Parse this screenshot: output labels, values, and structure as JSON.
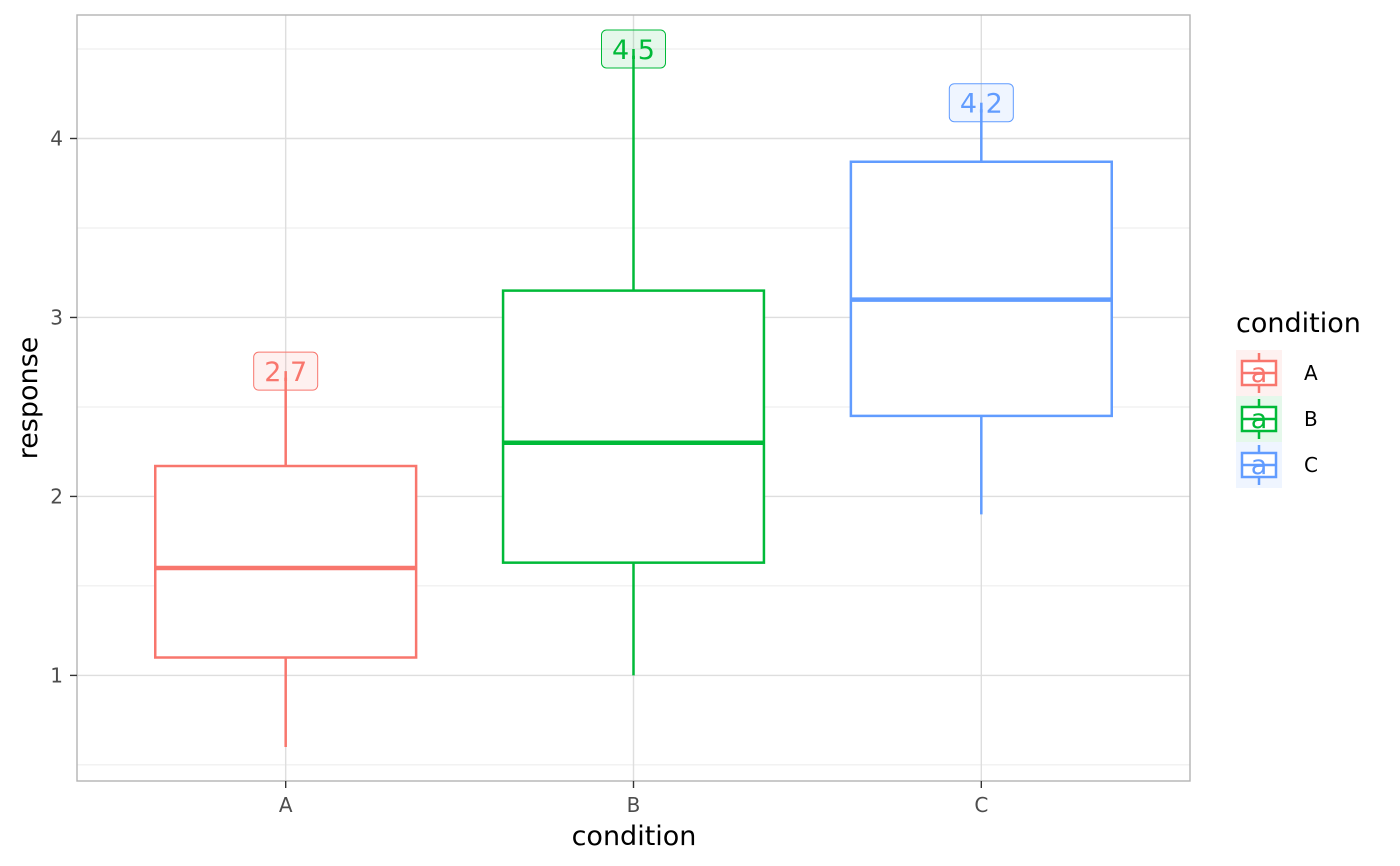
{
  "chart_data": {
    "type": "boxplot",
    "xlabel": "condition",
    "ylabel": "response",
    "categories": [
      "A",
      "B",
      "C"
    ],
    "ylim": [
      0.41,
      4.69
    ],
    "yticks": [
      1,
      2,
      3,
      4
    ],
    "grid": true,
    "legend": {
      "title": "condition",
      "position": "right",
      "key_glyph": "a",
      "entries": [
        "A",
        "B",
        "C"
      ]
    },
    "boxes": [
      {
        "name": "A",
        "color": "#F8766D",
        "min": 0.6,
        "q1": 1.1,
        "median": 1.6,
        "q3": 2.17,
        "max": 2.7,
        "label": "2.7"
      },
      {
        "name": "B",
        "color": "#00BA38",
        "min": 1.0,
        "q1": 1.63,
        "median": 2.3,
        "q3": 3.15,
        "max": 4.5,
        "label": "4.5"
      },
      {
        "name": "C",
        "color": "#619CFF",
        "min": 1.9,
        "q1": 2.45,
        "median": 3.1,
        "q3": 3.87,
        "max": 4.2,
        "label": "4.2"
      }
    ]
  }
}
